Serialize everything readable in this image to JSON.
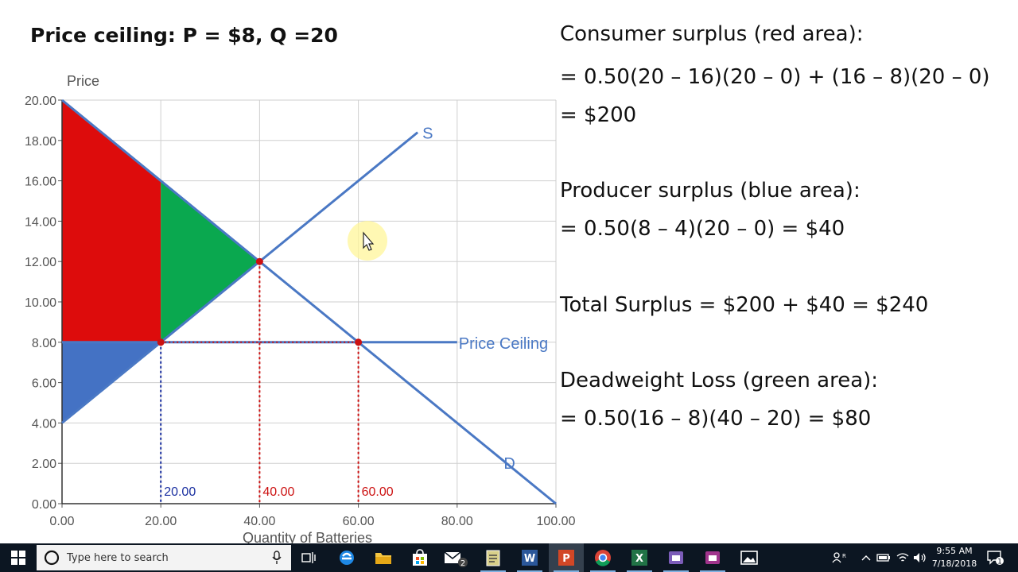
{
  "slide": {
    "title": "Price ceiling: P = $8, Q =20",
    "explanation": [
      "Consumer surplus (red area):",
      "= 0.50(20 – 16)(20 – 0) + (16 – 8)(20 – 0)",
      "= $200",
      "Producer surplus (blue area):",
      "= 0.50(8 – 4)(20 – 0) = $40",
      "Total Surplus = $200 + $40 = $240",
      "Deadweight Loss (green area):",
      "= 0.50(16 – 8)(40 – 20) = $80"
    ]
  },
  "chart_data": {
    "type": "line",
    "title": "",
    "xlabel": "Quantity of Batteries",
    "ylabel": "Price",
    "xlim": [
      0,
      100
    ],
    "ylim": [
      0,
      20
    ],
    "x_ticks": [
      "0.00",
      "20.00",
      "40.00",
      "60.00",
      "80.00",
      "100.00"
    ],
    "y_ticks": [
      "0.00",
      "2.00",
      "4.00",
      "6.00",
      "8.00",
      "10.00",
      "12.00",
      "14.00",
      "16.00",
      "18.00",
      "20.00"
    ],
    "grid": true,
    "series": [
      {
        "name": "D",
        "points": [
          [
            0,
            20
          ],
          [
            100,
            0
          ]
        ]
      },
      {
        "name": "S",
        "points": [
          [
            0,
            4
          ],
          [
            72,
            18.4
          ]
        ]
      },
      {
        "name": "Price Ceiling",
        "points": [
          [
            0,
            8
          ],
          [
            80,
            8
          ]
        ]
      }
    ],
    "areas": [
      {
        "label": "red",
        "meaning": "Consumer surplus",
        "points": [
          [
            0,
            20
          ],
          [
            20,
            16
          ],
          [
            20,
            8
          ],
          [
            0,
            8
          ]
        ]
      },
      {
        "label": "green",
        "meaning": "Deadweight Loss",
        "points": [
          [
            20,
            16
          ],
          [
            40,
            12
          ],
          [
            20,
            8
          ]
        ]
      },
      {
        "label": "blue",
        "meaning": "Producer surplus",
        "points": [
          [
            0,
            8
          ],
          [
            20,
            8
          ],
          [
            0,
            4
          ]
        ]
      }
    ],
    "markers": [
      [
        40,
        12
      ],
      [
        20,
        8
      ],
      [
        60,
        8
      ]
    ],
    "drop_lines": [
      {
        "x": 20,
        "y": 8,
        "label": "20.00",
        "color": "#1a2fa0"
      },
      {
        "x": 40,
        "y": 12,
        "label": "40.00",
        "color": "#cc1111"
      },
      {
        "x": 60,
        "y": 8,
        "label": "60.00",
        "color": "#cc1111"
      }
    ],
    "colors": {
      "consumer_surplus": "#dd0c0c",
      "deadweight_loss": "#0aa84f",
      "producer_surplus": "#4472c4",
      "curve": "#4a78c4",
      "grid": "#cfcfcf",
      "marker": "#cc1111"
    }
  },
  "taskbar": {
    "search_placeholder": "Type here to search",
    "apps": [
      "task-view",
      "edge",
      "file-explorer",
      "store",
      "mail",
      "notepad",
      "word",
      "powerpoint",
      "chrome",
      "excel",
      "teams",
      "teams-2",
      "photos"
    ],
    "active_app": "powerpoint",
    "mail_badge": "2",
    "time": "9:55 AM",
    "date": "7/18/2018",
    "notification_count": "1"
  }
}
